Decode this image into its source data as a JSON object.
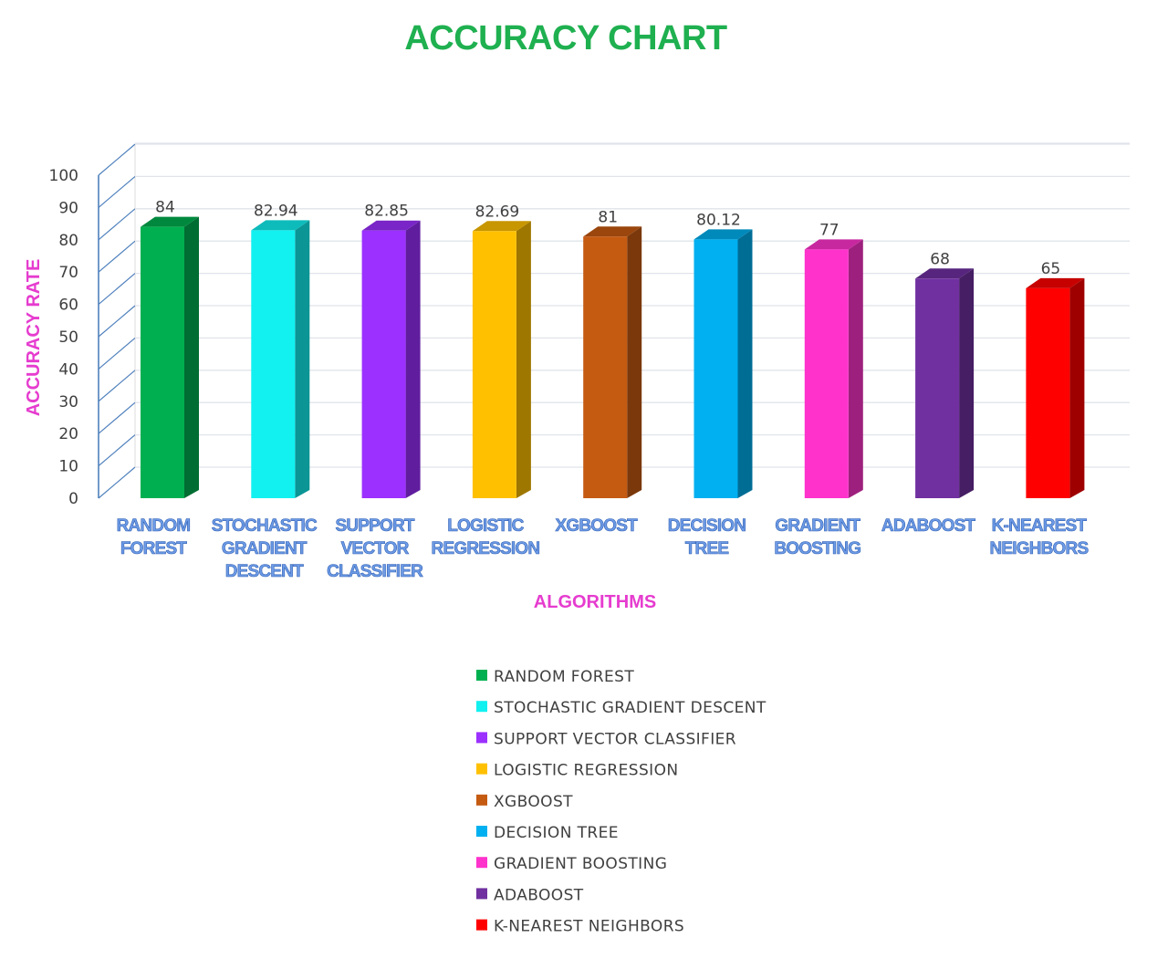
{
  "chart_data": {
    "type": "bar",
    "title": "ACCURACY CHART",
    "xlabel": "ALGORITHMS",
    "ylabel": "ACCURACY RATE",
    "ylim": [
      0,
      100
    ],
    "yticks": [
      0,
      10,
      20,
      30,
      40,
      50,
      60,
      70,
      80,
      90,
      100
    ],
    "grid": true,
    "legend_position": "bottom",
    "categories": [
      "RANDOM FOREST",
      "STOCHASTIC GRADIENT DESCENT",
      "SUPPORT VECTOR CLASSIFIER",
      "LOGISTIC REGRESSION",
      "XGBOOST",
      "DECISION TREE",
      "GRADIENT BOOSTING",
      "ADABOOST",
      "K-NEAREST NEIGHBORS"
    ],
    "category_label_lines": [
      [
        "RANDOM",
        "FOREST"
      ],
      [
        "STOCHASTIC",
        "GRADIENT",
        "DESCENT"
      ],
      [
        "SUPPORT",
        "VECTOR",
        "CLASSIFIER"
      ],
      [
        "LOGISTIC",
        "REGRESSION"
      ],
      [
        "XGBOOST"
      ],
      [
        "DECISION",
        "TREE"
      ],
      [
        "GRADIENT",
        "BOOSTING"
      ],
      [
        "ADABOOST"
      ],
      [
        "K-NEAREST",
        "NEIGHBORS"
      ]
    ],
    "values": [
      84,
      82.94,
      82.85,
      82.69,
      81,
      80.12,
      77,
      68,
      65
    ],
    "data_labels": [
      "84",
      "82.94",
      "82.85",
      "82.69",
      "81",
      "80.12",
      "77",
      "68",
      "65"
    ],
    "colors": [
      "#00b050",
      "#12f0f0",
      "#9b30ff",
      "#ffc000",
      "#c55a11",
      "#00b0f0",
      "#ff33cc",
      "#7030a0",
      "#ff0000"
    ],
    "legend": [
      "RANDOM FOREST",
      "STOCHASTIC GRADIENT DESCENT",
      "SUPPORT VECTOR CLASSIFIER",
      "LOGISTIC REGRESSION",
      "XGBOOST",
      "DECISION TREE",
      "GRADIENT BOOSTING",
      "ADABOOST",
      "K-NEAREST NEIGHBORS"
    ]
  }
}
